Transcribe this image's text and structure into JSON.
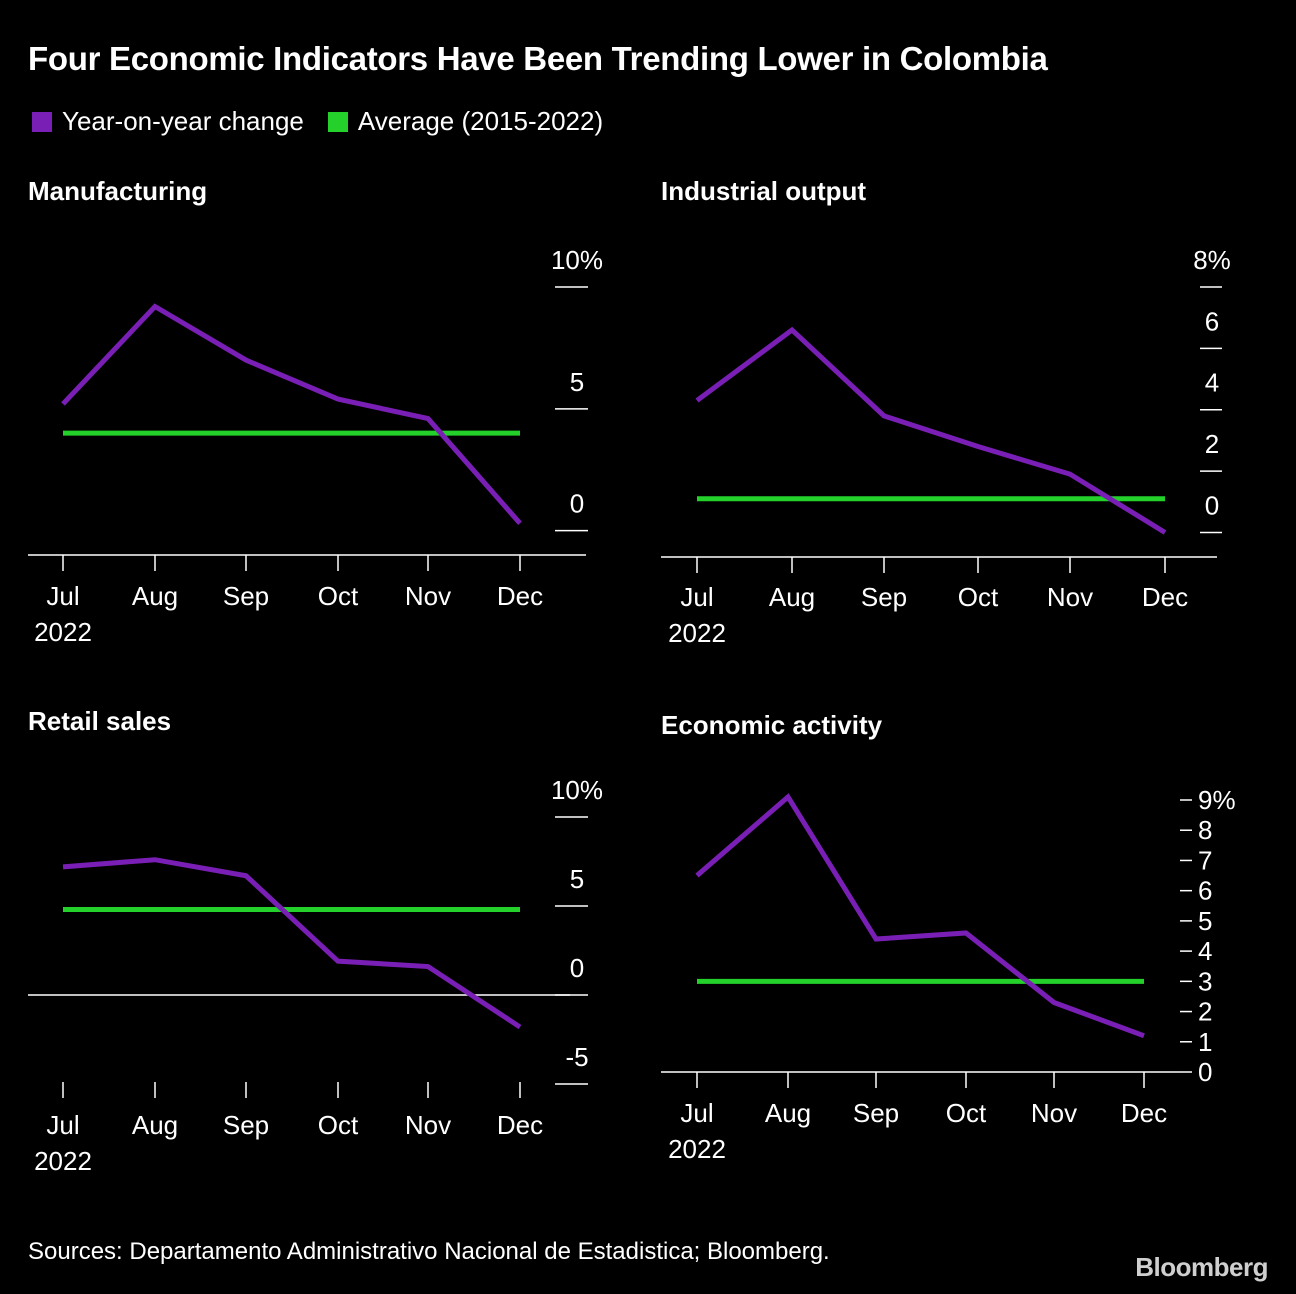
{
  "title": "Four Economic Indicators Have Been Trending Lower in Colombia",
  "legend": [
    {
      "label": "Year-on-year change",
      "color": "#7a1fb5"
    },
    {
      "label": "Average (2015-2022)",
      "color": "#23d12a"
    }
  ],
  "colors": {
    "series": "#7a1fb5",
    "average": "#23d12a",
    "axis": "#ffffff"
  },
  "chart_data": [
    {
      "type": "line",
      "title": "Manufacturing",
      "categories": [
        "Jul",
        "Aug",
        "Sep",
        "Oct",
        "Nov",
        "Dec"
      ],
      "year_label": "2022",
      "values": [
        5.2,
        9.2,
        7.0,
        5.4,
        4.6,
        0.3
      ],
      "average": 4.0,
      "ylim": [
        -1,
        10
      ],
      "yticks": [
        0,
        5,
        10
      ],
      "ytick_labels": [
        "0",
        "5",
        "10%"
      ]
    },
    {
      "type": "line",
      "title": "Industrial output",
      "categories": [
        "Jul",
        "Aug",
        "Sep",
        "Oct",
        "Nov",
        "Dec"
      ],
      "year_label": "2022",
      "values": [
        4.3,
        6.6,
        3.8,
        2.8,
        1.9,
        0.0
      ],
      "average": 1.1,
      "ylim": [
        -0.8,
        8
      ],
      "yticks": [
        0,
        2,
        4,
        6,
        8
      ],
      "ytick_labels": [
        "0",
        "2",
        "4",
        "6",
        "8%"
      ]
    },
    {
      "type": "line",
      "title": "Retail sales",
      "categories": [
        "Jul",
        "Aug",
        "Sep",
        "Oct",
        "Nov",
        "Dec"
      ],
      "year_label": "2022",
      "values": [
        7.2,
        7.6,
        6.7,
        1.9,
        1.6,
        -1.8
      ],
      "average": 4.8,
      "ylim": [
        -5,
        10
      ],
      "yticks": [
        -5,
        0,
        5,
        10
      ],
      "ytick_labels": [
        "-5",
        "0",
        "5",
        "10%"
      ],
      "zero_line": true
    },
    {
      "type": "line",
      "title": "Economic activity",
      "categories": [
        "Jul",
        "Aug",
        "Sep",
        "Oct",
        "Nov",
        "Dec"
      ],
      "year_label": "2022",
      "values": [
        6.5,
        9.1,
        4.4,
        4.6,
        2.3,
        1.2
      ],
      "average": 3.0,
      "ylim": [
        0,
        9
      ],
      "yticks": [
        0,
        1,
        2,
        3,
        4,
        5,
        6,
        7,
        8,
        9
      ],
      "ytick_labels": [
        "0",
        "1",
        "2",
        "3",
        "4",
        "5",
        "6",
        "7",
        "8",
        "9%"
      ]
    }
  ],
  "source": "Sources: Departamento Administrativo Nacional de Estadistica; Bloomberg.",
  "brand": "Bloomberg"
}
